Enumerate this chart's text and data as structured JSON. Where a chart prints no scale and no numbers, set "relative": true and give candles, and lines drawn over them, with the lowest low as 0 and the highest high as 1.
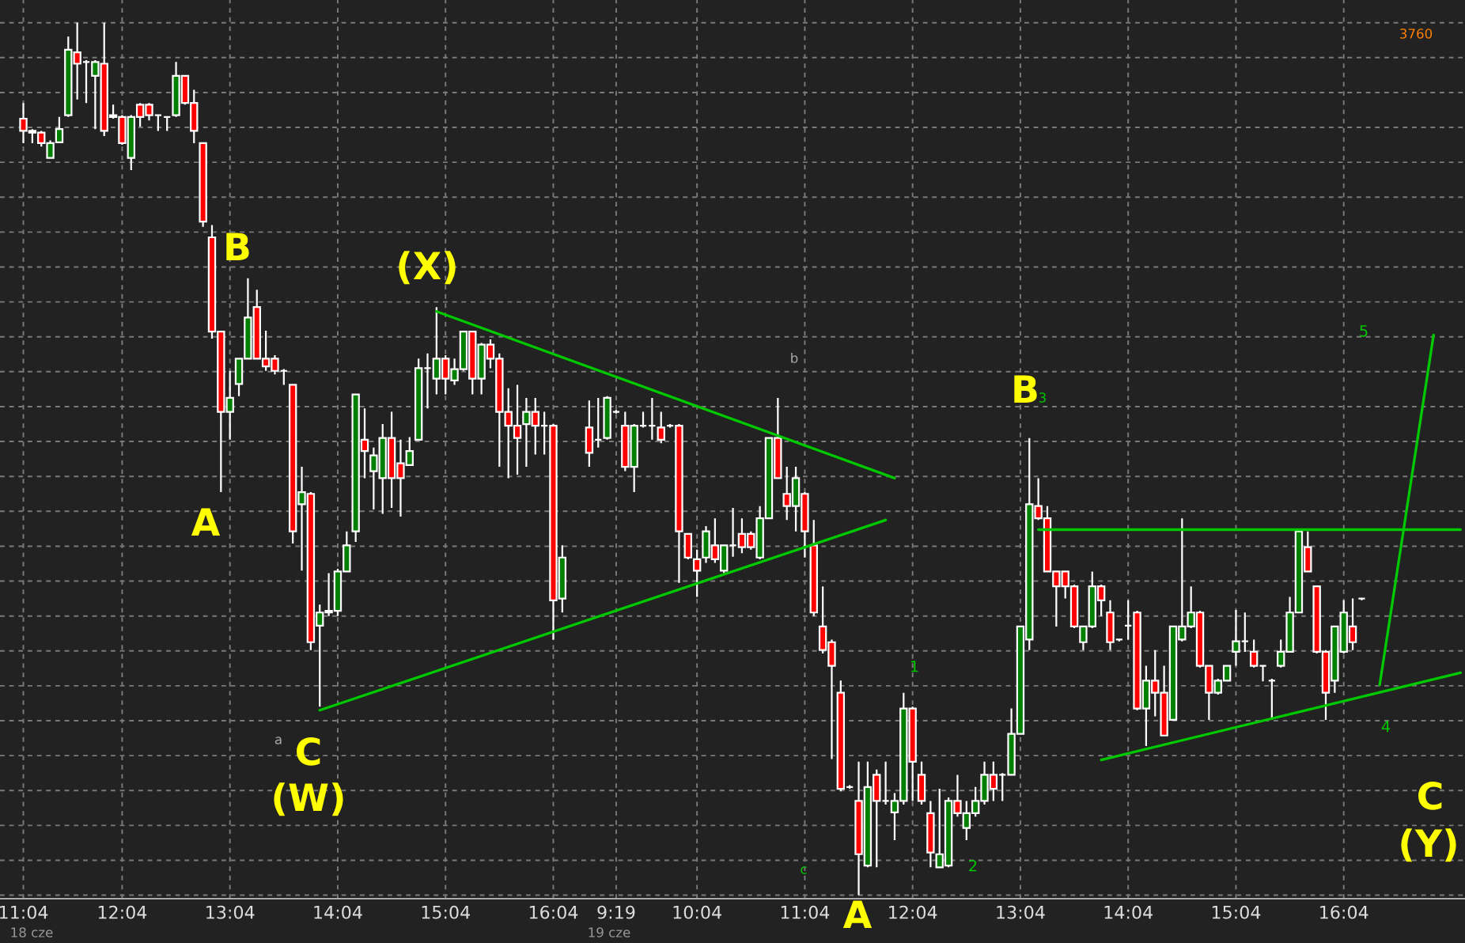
{
  "chart_data": {
    "type": "candlestick",
    "relative": true,
    "grid": true,
    "tick_labels": "x",
    "categories": [
      "11:04",
      null,
      null,
      null,
      null,
      null,
      null,
      null,
      null,
      null,
      null,
      "12:04",
      null,
      null,
      null,
      null,
      null,
      null,
      null,
      null,
      null,
      null,
      null,
      "13:04",
      null,
      null,
      null,
      null,
      null,
      null,
      null,
      null,
      null,
      null,
      null,
      "14:04",
      null,
      null,
      null,
      null,
      null,
      null,
      null,
      null,
      null,
      null,
      null,
      "15:04",
      null,
      null,
      null,
      null,
      null,
      null,
      null,
      null,
      null,
      null,
      null,
      "16:04",
      null,
      null,
      null,
      null,
      null,
      null,
      "9:19",
      null,
      null,
      null,
      null,
      null,
      null,
      null,
      null,
      "10:04",
      null,
      null,
      null,
      null,
      null,
      null,
      null,
      null,
      null,
      null,
      null,
      "11:04",
      null,
      null,
      null,
      null,
      null,
      null,
      null,
      null,
      null,
      null,
      null,
      "12:04",
      null,
      null,
      null,
      null,
      null,
      null,
      null,
      null,
      null,
      null,
      null,
      "13:04",
      null,
      null,
      null,
      null,
      null,
      null,
      null,
      null,
      null,
      null,
      null,
      "14:04",
      null,
      null,
      null,
      null,
      null,
      null,
      null,
      null,
      null,
      null,
      null,
      "15:04",
      null,
      null,
      null,
      null,
      null,
      null,
      null,
      null,
      null,
      null,
      null,
      "16:04",
      null,
      null,
      null,
      null,
      null,
      null,
      null,
      null,
      null,
      null,
      null,
      null,
      null
    ],
    "ohlc": [
      [
        0.89,
        0.908,
        0.862,
        0.876
      ],
      [
        0.874,
        0.878,
        0.862,
        0.876
      ],
      [
        0.874,
        0.876,
        0.858,
        0.862
      ],
      [
        0.845,
        0.865,
        0.845,
        0.862
      ],
      [
        0.863,
        0.892,
        0.862,
        0.878
      ],
      [
        0.894,
        0.984,
        0.892,
        0.969
      ],
      [
        0.966,
        1.0,
        0.912,
        0.953
      ],
      [
        0.955,
        0.957,
        0.908,
        0.955
      ],
      [
        0.939,
        0.957,
        0.878,
        0.955
      ],
      [
        0.953,
        1.0,
        0.87,
        0.876
      ],
      [
        0.894,
        0.906,
        0.89,
        0.892
      ],
      [
        0.892,
        0.894,
        0.86,
        0.862
      ],
      [
        0.845,
        0.894,
        0.831,
        0.892
      ],
      [
        0.906,
        0.908,
        0.881,
        0.892
      ],
      [
        0.906,
        0.908,
        0.888,
        0.894
      ],
      [
        0.894,
        0.894,
        0.876,
        0.894
      ],
      [
        0.892,
        0.892,
        0.876,
        0.892
      ],
      [
        0.894,
        0.955,
        0.892,
        0.939
      ],
      [
        0.939,
        0.94,
        0.906,
        0.908
      ],
      [
        0.908,
        0.923,
        0.862,
        0.876
      ],
      [
        0.862,
        0.862,
        0.766,
        0.772
      ],
      [
        0.754,
        0.768,
        0.638,
        0.646
      ],
      [
        0.646,
        0.647,
        0.462,
        0.554
      ],
      [
        0.554,
        0.601,
        0.522,
        0.57
      ],
      [
        0.586,
        0.615,
        0.572,
        0.615
      ],
      [
        0.615,
        0.707,
        0.615,
        0.662
      ],
      [
        0.674,
        0.694,
        0.615,
        0.615
      ],
      [
        0.615,
        0.647,
        0.601,
        0.606
      ],
      [
        0.615,
        0.619,
        0.597,
        0.601
      ],
      [
        0.601,
        0.603,
        0.585,
        0.601
      ],
      [
        0.585,
        0.585,
        0.403,
        0.417
      ],
      [
        0.448,
        0.491,
        0.372,
        0.462
      ],
      [
        0.46,
        0.462,
        0.281,
        0.29
      ],
      [
        0.309,
        0.333,
        0.216,
        0.324
      ],
      [
        0.324,
        0.369,
        0.32,
        0.326
      ],
      [
        0.326,
        0.374,
        0.32,
        0.371
      ],
      [
        0.371,
        0.417,
        0.371,
        0.401
      ],
      [
        0.417,
        0.574,
        0.405,
        0.574
      ],
      [
        0.522,
        0.558,
        0.478,
        0.509
      ],
      [
        0.486,
        0.513,
        0.442,
        0.504
      ],
      [
        0.478,
        0.54,
        0.437,
        0.524
      ],
      [
        0.524,
        0.554,
        0.444,
        0.478
      ],
      [
        0.495,
        0.522,
        0.434,
        0.478
      ],
      [
        0.493,
        0.525,
        0.493,
        0.509
      ],
      [
        0.522,
        0.615,
        0.522,
        0.604
      ],
      [
        0.604,
        0.621,
        0.558,
        0.604
      ],
      [
        0.592,
        0.674,
        0.574,
        0.615
      ],
      [
        0.615,
        0.619,
        0.574,
        0.592
      ],
      [
        0.59,
        0.615,
        0.585,
        0.603
      ],
      [
        0.603,
        0.647,
        0.601,
        0.646
      ],
      [
        0.646,
        0.647,
        0.574,
        0.592
      ],
      [
        0.592,
        0.633,
        0.574,
        0.631
      ],
      [
        0.631,
        0.637,
        0.604,
        0.615
      ],
      [
        0.615,
        0.621,
        0.491,
        0.554
      ],
      [
        0.554,
        0.581,
        0.478,
        0.538
      ],
      [
        0.538,
        0.585,
        0.482,
        0.524
      ],
      [
        0.54,
        0.57,
        0.491,
        0.554
      ],
      [
        0.554,
        0.57,
        0.505,
        0.538
      ],
      [
        0.538,
        0.554,
        0.505,
        0.538
      ],
      [
        0.538,
        0.54,
        0.293,
        0.338
      ],
      [
        0.34,
        0.401,
        0.324,
        0.387
      ],
      null,
      null,
      [
        0.536,
        0.567,
        0.491,
        0.507
      ],
      [
        0.522,
        0.57,
        0.513,
        0.522
      ],
      [
        0.524,
        0.572,
        0.522,
        0.57
      ],
      [
        0.554,
        0.556,
        0.552,
        0.554
      ],
      [
        0.538,
        0.554,
        0.486,
        0.491
      ],
      [
        0.491,
        0.54,
        0.462,
        0.538
      ],
      [
        0.538,
        0.554,
        0.536,
        0.538
      ],
      [
        0.538,
        0.57,
        0.522,
        0.538
      ],
      [
        0.536,
        0.554,
        0.518,
        0.522
      ],
      [
        0.538,
        0.54,
        0.536,
        0.538
      ],
      [
        0.538,
        0.54,
        0.358,
        0.417
      ],
      [
        0.414,
        0.414,
        0.385,
        0.387
      ],
      [
        0.385,
        0.396,
        0.342,
        0.372
      ],
      [
        0.387,
        0.423,
        0.381,
        0.417
      ],
      [
        0.401,
        0.432,
        0.381,
        0.385
      ],
      [
        0.372,
        0.401,
        0.369,
        0.401
      ],
      [
        0.401,
        0.444,
        0.388,
        0.401
      ],
      [
        0.414,
        0.432,
        0.392,
        0.399
      ],
      [
        0.414,
        0.417,
        0.396,
        0.399
      ],
      [
        0.387,
        0.446,
        0.385,
        0.432
      ],
      [
        0.432,
        0.524,
        0.432,
        0.524
      ],
      [
        0.524,
        0.57,
        0.478,
        0.478
      ],
      [
        0.46,
        0.491,
        0.43,
        0.446
      ],
      [
        0.446,
        0.491,
        0.417,
        0.478
      ],
      [
        0.46,
        0.462,
        0.387,
        0.417
      ],
      [
        0.401,
        0.43,
        0.32,
        0.324
      ],
      [
        0.308,
        0.354,
        0.277,
        0.281
      ],
      [
        0.29,
        0.293,
        0.156,
        0.263
      ],
      [
        0.232,
        0.246,
        0.119,
        0.122
      ],
      [
        0.124,
        0.126,
        0.122,
        0.124
      ],
      [
        0.108,
        0.153,
        0.0,
        0.047
      ],
      [
        0.034,
        0.153,
        0.032,
        0.124
      ],
      [
        0.138,
        0.144,
        0.032,
        0.108
      ],
      [
        0.108,
        0.153,
        0.104,
        0.108
      ],
      [
        0.095,
        0.117,
        0.063,
        0.108
      ],
      [
        0.108,
        0.232,
        0.104,
        0.214
      ],
      [
        0.214,
        0.216,
        0.108,
        0.153
      ],
      [
        0.138,
        0.153,
        0.104,
        0.108
      ],
      [
        0.094,
        0.108,
        0.032,
        0.049
      ],
      [
        0.032,
        0.122,
        0.032,
        0.047
      ],
      [
        0.034,
        0.112,
        0.032,
        0.108
      ],
      [
        0.108,
        0.138,
        0.09,
        0.094
      ],
      [
        0.077,
        0.108,
        0.063,
        0.094
      ],
      [
        0.094,
        0.124,
        0.09,
        0.108
      ],
      [
        0.108,
        0.153,
        0.104,
        0.138
      ],
      [
        0.138,
        0.153,
        0.108,
        0.122
      ],
      [
        0.138,
        0.14,
        0.108,
        0.138
      ],
      [
        0.138,
        0.214,
        0.138,
        0.185
      ],
      [
        0.185,
        0.308,
        0.185,
        0.308
      ],
      [
        0.293,
        0.524,
        0.281,
        0.448
      ],
      [
        0.446,
        0.478,
        0.43,
        0.432
      ],
      [
        0.432,
        0.446,
        0.371,
        0.371
      ],
      [
        0.371,
        0.372,
        0.308,
        0.354
      ],
      [
        0.371,
        0.372,
        0.34,
        0.354
      ],
      [
        0.354,
        0.356,
        0.306,
        0.308
      ],
      [
        0.29,
        0.309,
        0.281,
        0.308
      ],
      [
        0.308,
        0.371,
        0.306,
        0.354
      ],
      [
        0.354,
        0.356,
        0.32,
        0.338
      ],
      [
        0.324,
        0.338,
        0.281,
        0.29
      ],
      [
        0.293,
        0.293,
        0.291,
        0.293
      ],
      [
        0.309,
        0.338,
        0.293,
        0.309
      ],
      [
        0.324,
        0.326,
        0.212,
        0.214
      ],
      [
        0.214,
        0.263,
        0.171,
        0.246
      ],
      [
        0.246,
        0.281,
        0.205,
        0.232
      ],
      [
        0.232,
        0.263,
        0.182,
        0.183
      ],
      [
        0.201,
        0.309,
        0.2,
        0.308
      ],
      [
        0.293,
        0.432,
        0.291,
        0.308
      ],
      [
        0.308,
        0.354,
        0.306,
        0.324
      ],
      [
        0.324,
        0.326,
        0.261,
        0.263
      ],
      [
        0.263,
        0.264,
        0.201,
        0.232
      ],
      [
        0.232,
        0.248,
        0.23,
        0.246
      ],
      [
        0.246,
        0.264,
        0.245,
        0.263
      ],
      [
        0.279,
        0.327,
        0.263,
        0.291
      ],
      [
        0.291,
        0.324,
        0.279,
        0.291
      ],
      [
        0.279,
        0.293,
        0.261,
        0.263
      ],
      [
        0.263,
        0.263,
        0.245,
        0.263
      ],
      [
        0.246,
        0.248,
        0.201,
        0.246
      ],
      [
        0.263,
        0.293,
        0.261,
        0.279
      ],
      [
        0.279,
        0.342,
        0.279,
        0.324
      ],
      [
        0.324,
        0.417,
        0.324,
        0.417
      ],
      [
        0.399,
        0.417,
        0.371,
        0.371
      ],
      [
        0.354,
        0.354,
        0.277,
        0.279
      ],
      [
        0.279,
        0.281,
        0.201,
        0.232
      ],
      [
        0.246,
        0.309,
        0.232,
        0.308
      ],
      [
        0.279,
        0.338,
        0.277,
        0.324
      ],
      [
        0.308,
        0.34,
        0.281,
        0.29
      ],
      [
        0.34,
        0.34,
        0.338,
        0.34
      ],
      null,
      null,
      null,
      null,
      null,
      null,
      null,
      null,
      null,
      null,
      null
    ],
    "series": [
      {
        "type": "line",
        "color": "#00c800",
        "values": [
          null,
          null,
          null,
          null,
          null,
          null,
          null,
          null,
          null,
          null,
          null,
          null,
          null,
          null,
          null,
          null,
          null,
          null,
          null,
          null,
          null,
          null,
          null,
          null,
          null,
          null,
          null,
          null,
          null,
          null,
          null,
          null,
          null,
          null,
          null,
          null,
          null,
          null,
          null,
          null,
          null,
          null,
          null,
          null,
          null,
          null,
          0.669,
          null,
          null,
          null,
          null,
          null,
          null,
          null,
          null,
          null,
          null,
          null,
          null,
          null,
          null,
          null,
          null,
          null,
          null,
          null,
          null,
          null,
          null,
          null,
          null,
          null,
          null,
          null,
          null,
          null,
          null,
          null,
          null,
          null,
          null,
          null,
          null,
          null,
          null,
          null,
          null,
          null,
          null,
          null,
          null,
          null,
          null,
          null,
          null,
          null,
          null,
          0.478,
          null,
          null,
          null,
          null,
          null,
          null,
          null,
          null,
          null,
          null,
          null,
          null,
          null,
          null,
          null,
          null,
          null,
          null,
          null,
          null,
          null,
          null,
          null,
          null,
          null,
          null,
          null,
          null,
          null,
          null,
          null,
          null,
          null,
          null,
          null,
          null,
          null,
          null,
          null,
          null,
          null,
          null,
          null,
          null,
          null,
          null,
          null,
          null,
          null,
          null,
          null,
          null,
          null,
          null,
          null,
          null,
          null,
          null,
          null,
          null,
          null,
          null,
          null
        ]
      },
      {
        "type": "line",
        "color": "#00c800",
        "values": [
          null,
          null,
          null,
          null,
          null,
          null,
          null,
          null,
          null,
          null,
          null,
          null,
          null,
          null,
          null,
          null,
          null,
          null,
          null,
          null,
          null,
          null,
          null,
          null,
          null,
          null,
          null,
          null,
          null,
          null,
          null,
          null,
          null,
          0.212,
          null,
          null,
          null,
          null,
          null,
          null,
          null,
          null,
          null,
          null,
          null,
          null,
          null,
          null,
          null,
          null,
          null,
          null,
          null,
          null,
          null,
          null,
          null,
          null,
          null,
          null,
          null,
          null,
          null,
          null,
          null,
          null,
          null,
          null,
          null,
          null,
          null,
          null,
          null,
          null,
          null,
          null,
          null,
          null,
          null,
          null,
          null,
          null,
          null,
          null,
          null,
          null,
          null,
          null,
          null,
          null,
          null,
          null,
          null,
          null,
          null,
          null,
          0.43,
          null,
          null,
          null,
          null,
          null,
          null,
          null,
          null,
          null,
          null,
          null,
          null,
          null,
          null,
          null,
          null,
          null,
          null,
          null,
          null,
          null,
          null,
          null,
          null,
          null,
          null,
          null,
          null,
          null,
          null,
          null,
          null,
          null,
          null,
          null,
          null,
          null,
          null,
          null,
          null,
          null,
          null,
          null,
          null,
          null,
          null,
          null,
          null,
          null,
          null,
          null,
          null,
          null,
          null,
          null,
          null,
          null,
          null,
          null,
          null,
          null,
          null,
          null,
          null
        ]
      },
      {
        "type": "line",
        "color": "#00c800",
        "values": [
          null,
          null,
          null,
          null,
          null,
          null,
          null,
          null,
          null,
          null,
          null,
          null,
          null,
          null,
          null,
          null,
          null,
          null,
          null,
          null,
          null,
          null,
          null,
          null,
          null,
          null,
          null,
          null,
          null,
          null,
          null,
          null,
          null,
          null,
          null,
          null,
          null,
          null,
          null,
          null,
          null,
          null,
          null,
          null,
          null,
          null,
          null,
          null,
          null,
          null,
          null,
          null,
          null,
          null,
          null,
          null,
          null,
          null,
          null,
          null,
          null,
          null,
          null,
          null,
          null,
          null,
          null,
          null,
          null,
          null,
          null,
          null,
          null,
          null,
          null,
          null,
          null,
          null,
          null,
          null,
          null,
          null,
          null,
          null,
          null,
          null,
          null,
          null,
          null,
          null,
          null,
          null,
          null,
          null,
          null,
          null,
          null,
          null,
          null,
          null,
          null,
          null,
          null,
          null,
          null,
          null,
          null,
          null,
          null,
          null,
          null,
          null,
          null,
          0.419,
          null,
          null,
          null,
          null,
          null,
          null,
          null,
          null,
          null,
          null,
          null,
          null,
          null,
          null,
          null,
          null,
          null,
          null,
          null,
          null,
          null,
          null,
          null,
          null,
          null,
          null,
          null,
          null,
          null,
          null,
          null,
          null,
          null,
          null,
          null,
          null,
          null,
          null,
          null,
          null,
          null,
          null,
          null,
          null,
          null,
          null,
          0.419
        ]
      },
      {
        "type": "line",
        "color": "#00c800",
        "values": [
          null,
          null,
          null,
          null,
          null,
          null,
          null,
          null,
          null,
          null,
          null,
          null,
          null,
          null,
          null,
          null,
          null,
          null,
          null,
          null,
          null,
          null,
          null,
          null,
          null,
          null,
          null,
          null,
          null,
          null,
          null,
          null,
          null,
          null,
          null,
          null,
          null,
          null,
          null,
          null,
          null,
          null,
          null,
          null,
          null,
          null,
          null,
          null,
          null,
          null,
          null,
          null,
          null,
          null,
          null,
          null,
          null,
          null,
          null,
          null,
          null,
          null,
          null,
          null,
          null,
          null,
          null,
          null,
          null,
          null,
          null,
          null,
          null,
          null,
          null,
          null,
          null,
          null,
          null,
          null,
          null,
          null,
          null,
          null,
          null,
          null,
          null,
          null,
          null,
          null,
          null,
          null,
          null,
          null,
          null,
          null,
          null,
          null,
          null,
          null,
          null,
          null,
          null,
          null,
          null,
          null,
          null,
          null,
          null,
          null,
          null,
          null,
          null,
          null,
          null,
          null,
          null,
          null,
          null,
          null,
          0.155,
          null,
          null,
          null,
          null,
          null,
          null,
          null,
          null,
          null,
          null,
          null,
          null,
          null,
          null,
          null,
          null,
          null,
          null,
          null,
          null,
          null,
          null,
          null,
          null,
          null,
          null,
          null,
          null,
          null,
          null,
          null,
          null,
          null,
          null,
          null,
          null,
          null,
          null,
          null,
          0.255
        ]
      },
      {
        "type": "line",
        "color": "#00c800",
        "values": [
          null,
          null,
          null,
          null,
          null,
          null,
          null,
          null,
          null,
          null,
          null,
          null,
          null,
          null,
          null,
          null,
          null,
          null,
          null,
          null,
          null,
          null,
          null,
          null,
          null,
          null,
          null,
          null,
          null,
          null,
          null,
          null,
          null,
          null,
          null,
          null,
          null,
          null,
          null,
          null,
          null,
          null,
          null,
          null,
          null,
          null,
          null,
          null,
          null,
          null,
          null,
          null,
          null,
          null,
          null,
          null,
          null,
          null,
          null,
          null,
          null,
          null,
          null,
          null,
          null,
          null,
          null,
          null,
          null,
          null,
          null,
          null,
          null,
          null,
          null,
          null,
          null,
          null,
          null,
          null,
          null,
          null,
          null,
          null,
          null,
          null,
          null,
          null,
          null,
          null,
          null,
          null,
          null,
          null,
          null,
          null,
          null,
          null,
          null,
          null,
          null,
          null,
          null,
          null,
          null,
          null,
          null,
          null,
          null,
          null,
          null,
          null,
          null,
          null,
          null,
          null,
          null,
          null,
          null,
          null,
          null,
          null,
          null,
          null,
          null,
          null,
          null,
          null,
          null,
          null,
          null,
          null,
          null,
          null,
          null,
          null,
          null,
          null,
          null,
          null,
          null,
          null,
          null,
          null,
          null,
          null,
          null,
          null,
          null,
          null,
          null,
          0.241,
          null,
          null,
          null,
          null,
          null,
          0.642,
          null,
          null,
          null
        ]
      }
    ],
    "annotations": [
      "B",
      "A",
      "(X)",
      "C",
      "(W)",
      "a",
      "b",
      "c",
      "A",
      "1",
      "2",
      "B",
      "3",
      "4",
      "5",
      "C",
      "(Y)",
      "3760",
      "18 cze",
      "19 cze"
    ]
  }
}
